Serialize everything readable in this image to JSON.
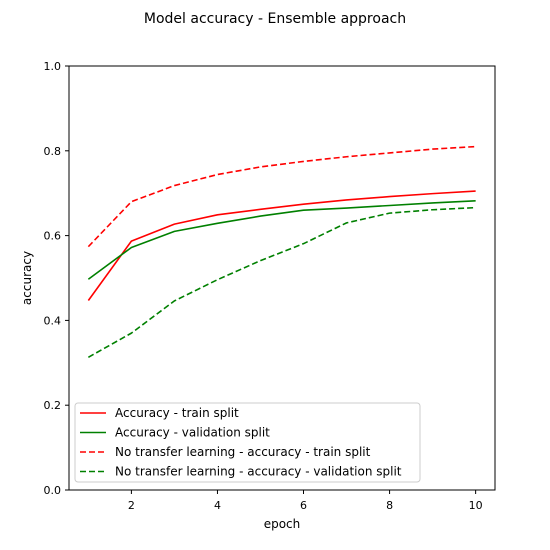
{
  "chart_data": {
    "type": "line",
    "title": "Model accuracy - Ensemble approach",
    "xlabel": "epoch",
    "ylabel": "accuracy",
    "xlim": [
      0.55,
      10.45
    ],
    "ylim": [
      0.0,
      1.0
    ],
    "xticks": [
      2,
      4,
      6,
      8,
      10
    ],
    "yticks": [
      0.0,
      0.2,
      0.4,
      0.6,
      0.8,
      1.0
    ],
    "ytick_labels": [
      "0.0",
      "0.2",
      "0.4",
      "0.6",
      "0.8",
      "1.0"
    ],
    "grid": false,
    "legend_position": "lower-left",
    "x": [
      1,
      2,
      3,
      4,
      5,
      6,
      7,
      8,
      9,
      10
    ],
    "series": [
      {
        "name": "Accuracy - train split",
        "color": "#ff0000",
        "dash": "solid",
        "values": [
          0.447,
          0.587,
          0.627,
          0.649,
          0.662,
          0.674,
          0.684,
          0.692,
          0.699,
          0.705
        ]
      },
      {
        "name": "Accuracy - validation split",
        "color": "#008000",
        "dash": "solid",
        "values": [
          0.497,
          0.572,
          0.61,
          0.629,
          0.646,
          0.66,
          0.665,
          0.671,
          0.677,
          0.682
        ]
      },
      {
        "name": "No transfer learning - accuracy - train split",
        "color": "#ff0000",
        "dash": "dashed",
        "values": [
          0.574,
          0.68,
          0.718,
          0.744,
          0.762,
          0.775,
          0.786,
          0.795,
          0.804,
          0.81
        ]
      },
      {
        "name": "No transfer learning - accuracy - validation split",
        "color": "#008000",
        "dash": "dashed",
        "values": [
          0.313,
          0.37,
          0.446,
          0.496,
          0.541,
          0.581,
          0.63,
          0.653,
          0.661,
          0.666
        ]
      }
    ]
  }
}
